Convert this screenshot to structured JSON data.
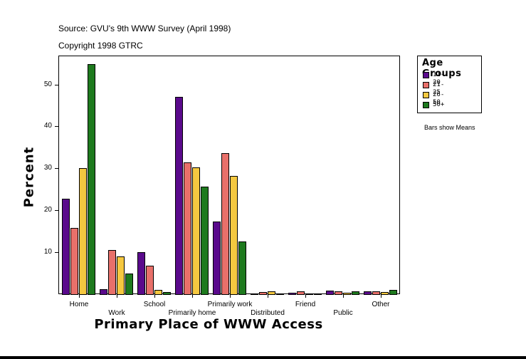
{
  "header": {
    "source": "Source: GVU's 9th WWW Survey (April 1998)",
    "copyright": "Copyright 1998 GTRC"
  },
  "legend": {
    "title": "Age Groups",
    "items": [
      {
        "label": "11-20",
        "color": "#5a0a8c"
      },
      {
        "label": "21-25",
        "color": "#e8706a"
      },
      {
        "label": "26-50",
        "color": "#f5c840"
      },
      {
        "label": "50+",
        "color": "#1e7a1e"
      }
    ]
  },
  "note": "Bars show Means",
  "chart_data": {
    "type": "bar",
    "title": "Source: GVU's 9th WWW Survey (April 1998)",
    "subtitle": "Copyright 1998 GTRC",
    "xlabel": "Primary Place of WWW Access",
    "ylabel": "Percent",
    "ylim": [
      0,
      57
    ],
    "yticks": [
      10,
      20,
      30,
      40,
      50
    ],
    "grid": false,
    "legend_position": "right",
    "legend_title": "Age Groups",
    "annotation": "Bars show Means",
    "categories": [
      "Home",
      "Work",
      "School",
      "Primarily home",
      "Primarily work",
      "Distributed",
      "Friend",
      "Public",
      "Other"
    ],
    "series": [
      {
        "name": "11-20",
        "color": "#5a0a8c",
        "values": [
          22.7,
          1.2,
          10.0,
          47.1,
          17.3,
          0.2,
          0.3,
          0.8,
          0.7
        ]
      },
      {
        "name": "21-25",
        "color": "#e8706a",
        "values": [
          15.8,
          10.5,
          6.8,
          31.4,
          33.6,
          0.5,
          0.7,
          0.6,
          0.7
        ]
      },
      {
        "name": "26-50",
        "color": "#f5c840",
        "values": [
          30.0,
          9.0,
          1.0,
          30.3,
          28.1,
          0.7,
          0.2,
          0.4,
          0.5
        ]
      },
      {
        "name": "50+",
        "color": "#1e7a1e",
        "values": [
          54.9,
          4.9,
          0.5,
          25.6,
          12.5,
          0.2,
          0.2,
          0.7,
          1.0
        ]
      }
    ]
  }
}
